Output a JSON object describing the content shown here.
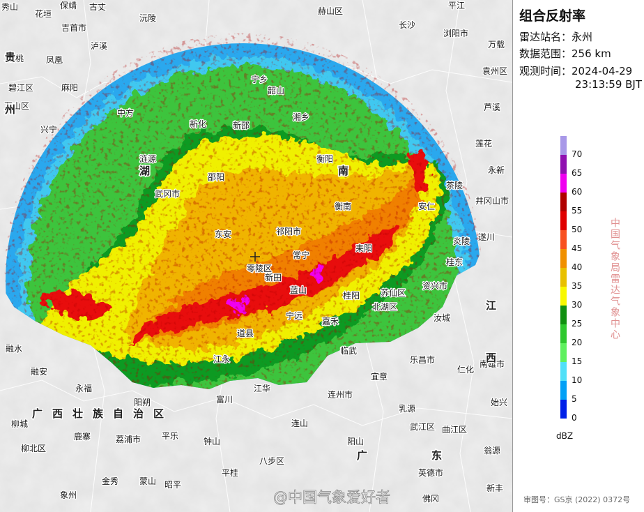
{
  "panel": {
    "title": "组合反射率",
    "station_label": "雷达站名：",
    "station": "永州",
    "range_label": "数据范围：",
    "range": "256 km",
    "time_label": "观测时间：",
    "date": "2024-04-29",
    "time": "23:13:59 BJT",
    "agency": "中国气象局雷达气象中心",
    "approval": "审图号：GS京 (2022) 0372号"
  },
  "legend": {
    "unit": "dBZ",
    "values": [
      0,
      5,
      10,
      15,
      20,
      25,
      30,
      35,
      40,
      45,
      50,
      55,
      60,
      65,
      70
    ],
    "colors": [
      "#0020e8",
      "#01a0f6",
      "#50e0f8",
      "#5ef05e",
      "#2ec82e",
      "#109010",
      "#f8f800",
      "#e8c000",
      "#f09000",
      "#f85020",
      "#e00000",
      "#b00000",
      "#f000f0",
      "#9010b0",
      "#a898e8"
    ]
  },
  "map": {
    "places": [
      "秀山",
      "花垣",
      "保靖",
      "古丈",
      "沅陵",
      "吉首市",
      "泸溪",
      "松桃",
      "凤凰",
      "碧江区",
      "万山区",
      "麻阳",
      "赫山区",
      "平江",
      "长沙",
      "浏阳市",
      "万载",
      "袁州区",
      "芦溪",
      "莲花",
      "永新",
      "井冈山市",
      "遂川",
      "邵阳",
      "武冈市",
      "东安",
      "祁阳市",
      "衡阳",
      "衡南",
      "零陵区",
      "道县",
      "宁远",
      "嘉禾",
      "桂阳",
      "北湖区",
      "苏仙区",
      "资兴市",
      "临武",
      "宜章",
      "连州市",
      "江永",
      "江华",
      "富川",
      "钟山",
      "阳朔",
      "荔浦市",
      "平乐",
      "连山",
      "阳山",
      "乳源",
      "乐昌市",
      "仁化",
      "南雄市",
      "始兴",
      "曲江区",
      "武江区",
      "翁源",
      "英德市",
      "新丰",
      "佛冈",
      "八步区",
      "平桂",
      "昭平",
      "蒙山",
      "金秀",
      "象州",
      "柳北区",
      "鹿寨",
      "永福",
      "融安",
      "融水",
      "柳城",
      "安仁",
      "茶陵",
      "炎陵",
      "桂东",
      "汝城",
      "中方",
      "新邵",
      "新化",
      "涟源",
      "湘乡",
      "韶山",
      "宁乡",
      "蓝山",
      "新田",
      "常宁",
      "耒阳",
      "兴宁"
    ],
    "provinces": [
      "贵州",
      "湖南",
      "广西壮族自治区",
      "广东",
      "江西"
    ]
  },
  "watermark": "@中国气象爱好者"
}
